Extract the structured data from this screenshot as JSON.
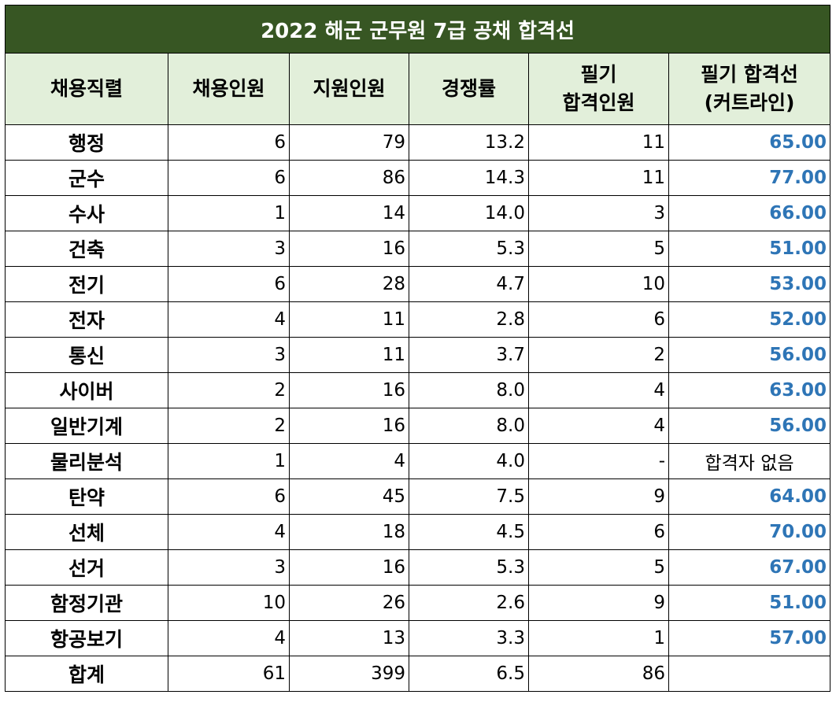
{
  "title": "2022 해군 군무원 7급 공채  합격선",
  "headers": {
    "job": "채용직렬",
    "hire": "채용인원",
    "apply": "지원인원",
    "rate": "경쟁률",
    "pass_line1": "필기",
    "pass_line2": "합격인원",
    "cut_line1": "필기 합격선",
    "cut_line2": "(커트라인)"
  },
  "rows": [
    {
      "job": "행정",
      "hire": "6",
      "apply": "79",
      "rate": "13.2",
      "pass": "11",
      "cut": "65.00"
    },
    {
      "job": "군수",
      "hire": "6",
      "apply": "86",
      "rate": "14.3",
      "pass": "11",
      "cut": "77.00"
    },
    {
      "job": "수사",
      "hire": "1",
      "apply": "14",
      "rate": "14.0",
      "pass": "3",
      "cut": "66.00"
    },
    {
      "job": "건축",
      "hire": "3",
      "apply": "16",
      "rate": "5.3",
      "pass": "5",
      "cut": "51.00"
    },
    {
      "job": "전기",
      "hire": "6",
      "apply": "28",
      "rate": "4.7",
      "pass": "10",
      "cut": "53.00"
    },
    {
      "job": "전자",
      "hire": "4",
      "apply": "11",
      "rate": "2.8",
      "pass": "6",
      "cut": "52.00"
    },
    {
      "job": "통신",
      "hire": "3",
      "apply": "11",
      "rate": "3.7",
      "pass": "2",
      "cut": "56.00"
    },
    {
      "job": "사이버",
      "hire": "2",
      "apply": "16",
      "rate": "8.0",
      "pass": "4",
      "cut": "63.00"
    },
    {
      "job": "일반기계",
      "hire": "2",
      "apply": "16",
      "rate": "8.0",
      "pass": "4",
      "cut": "56.00"
    },
    {
      "job": "물리분석",
      "hire": "1",
      "apply": "4",
      "rate": "4.0",
      "pass": "-",
      "cut": "합격자 없음"
    },
    {
      "job": "탄약",
      "hire": "6",
      "apply": "45",
      "rate": "7.5",
      "pass": "9",
      "cut": "64.00"
    },
    {
      "job": "선체",
      "hire": "4",
      "apply": "18",
      "rate": "4.5",
      "pass": "6",
      "cut": "70.00"
    },
    {
      "job": "선거",
      "hire": "3",
      "apply": "16",
      "rate": "5.3",
      "pass": "5",
      "cut": "67.00"
    },
    {
      "job": "함정기관",
      "hire": "10",
      "apply": "26",
      "rate": "2.6",
      "pass": "9",
      "cut": "51.00"
    },
    {
      "job": "항공보기",
      "hire": "4",
      "apply": "13",
      "rate": "3.3",
      "pass": "1",
      "cut": "57.00"
    }
  ],
  "total": {
    "job": "합계",
    "hire": "61",
    "apply": "399",
    "rate": "6.5",
    "pass": "86",
    "cut": ""
  },
  "colors": {
    "title_bg": "#375623",
    "header_bg": "#e2efda",
    "cutline_text": "#2e75b6"
  }
}
